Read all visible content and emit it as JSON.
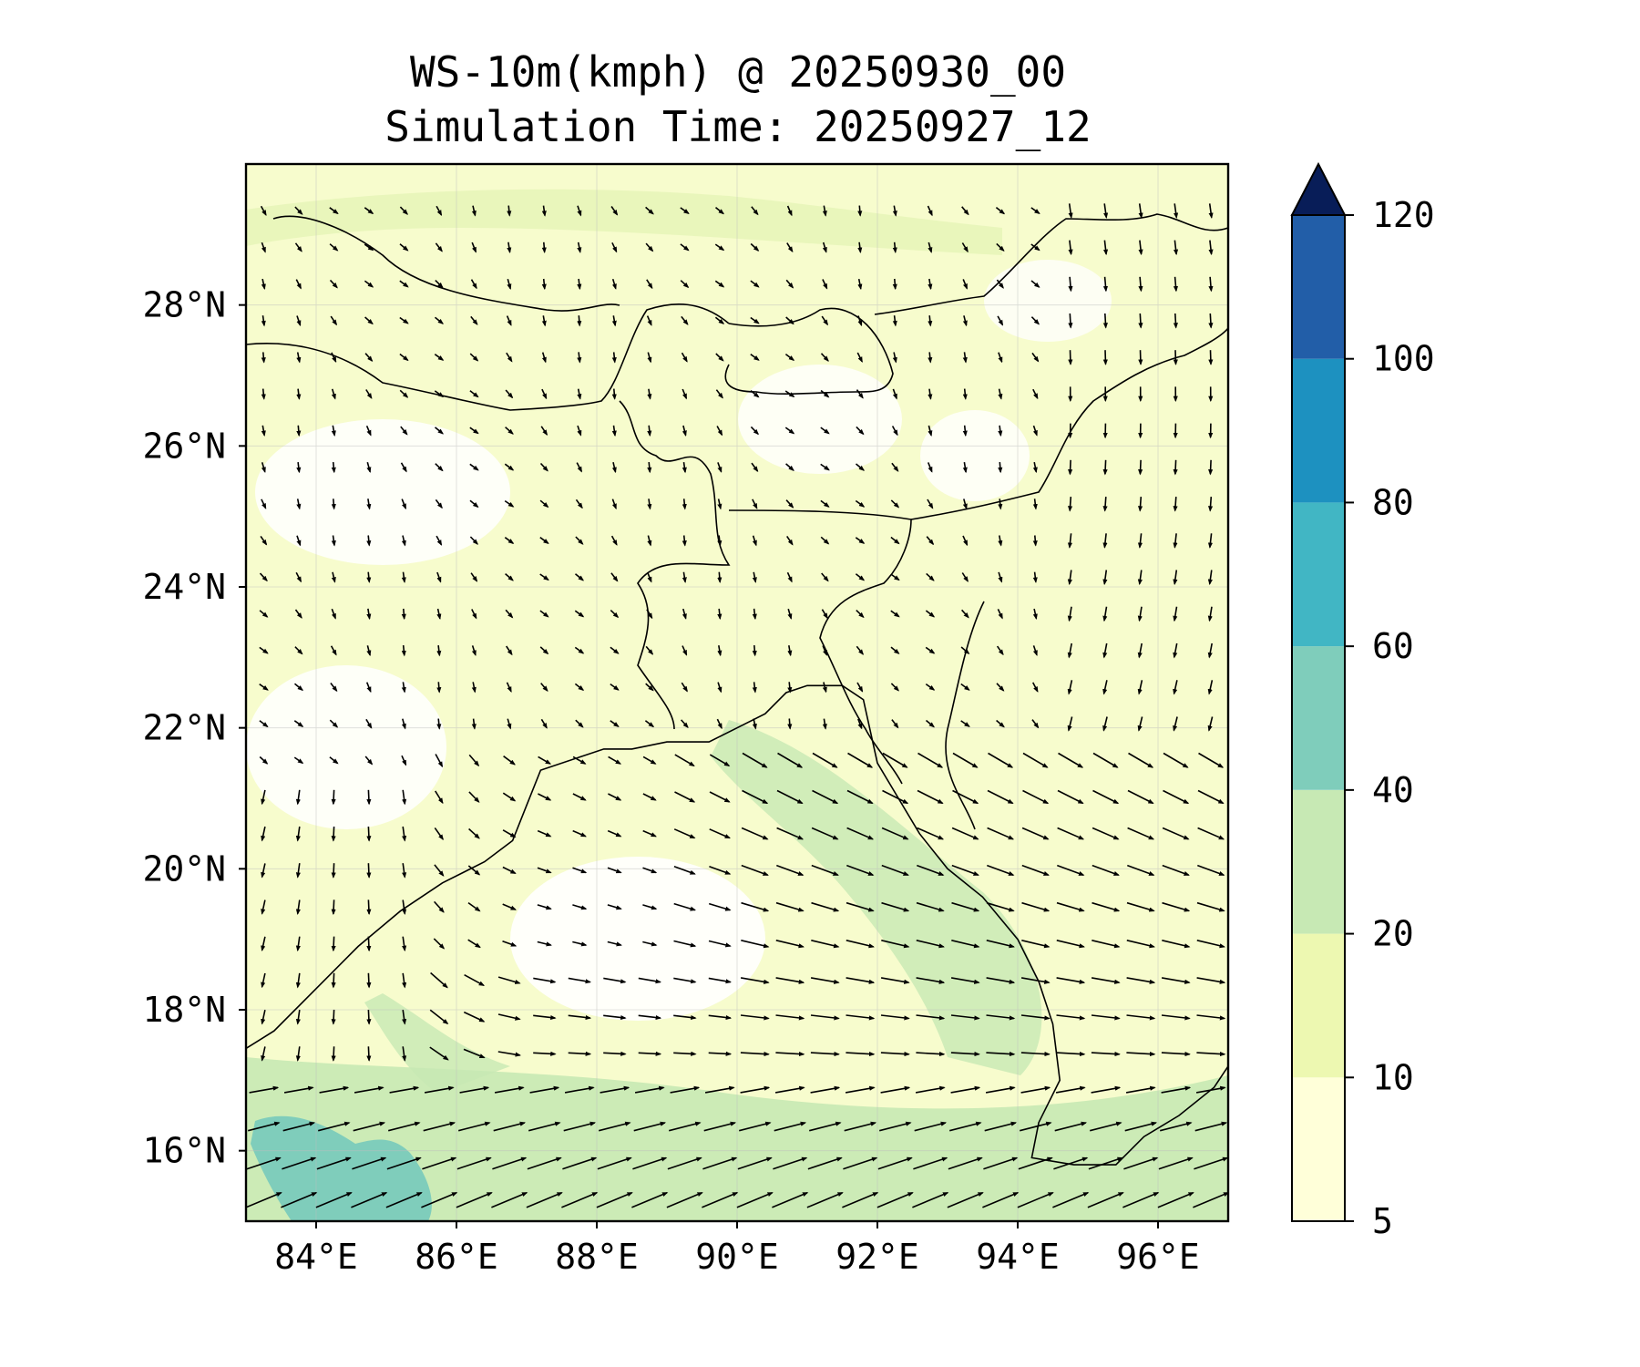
{
  "title": {
    "line1": "WS-10m(kmph) @ 20250930_00",
    "line2": "Simulation Time: 20250927_12"
  },
  "map": {
    "lon_range": [
      83.0,
      97.0
    ],
    "lat_range": [
      15.0,
      30.0
    ],
    "x_ticks": [
      {
        "value": 84,
        "label": "84°E"
      },
      {
        "value": 86,
        "label": "86°E"
      },
      {
        "value": 88,
        "label": "88°E"
      },
      {
        "value": 90,
        "label": "90°E"
      },
      {
        "value": 92,
        "label": "92°E"
      },
      {
        "value": 94,
        "label": "94°E"
      },
      {
        "value": 96,
        "label": "96°E"
      }
    ],
    "y_ticks": [
      {
        "value": 16,
        "label": "16°N"
      },
      {
        "value": 18,
        "label": "18°N"
      },
      {
        "value": 20,
        "label": "20°N"
      },
      {
        "value": 22,
        "label": "22°N"
      },
      {
        "value": 24,
        "label": "24°N"
      },
      {
        "value": 26,
        "label": "26°N"
      },
      {
        "value": 28,
        "label": "28°N"
      }
    ],
    "gridlines": true,
    "coastline": [
      [
        83.0,
        17.45
      ],
      [
        83.4,
        17.7
      ],
      [
        84.0,
        18.3
      ],
      [
        84.6,
        18.9
      ],
      [
        85.2,
        19.4
      ],
      [
        85.8,
        19.8
      ],
      [
        86.4,
        20.1
      ],
      [
        86.8,
        20.4
      ],
      [
        87.0,
        20.9
      ],
      [
        87.2,
        21.4
      ],
      [
        87.8,
        21.6
      ],
      [
        88.1,
        21.7
      ],
      [
        88.5,
        21.7
      ],
      [
        89.0,
        21.8
      ],
      [
        89.6,
        21.8
      ],
      [
        90.0,
        22.0
      ],
      [
        90.4,
        22.2
      ],
      [
        90.7,
        22.5
      ],
      [
        91.0,
        22.6
      ],
      [
        91.5,
        22.6
      ],
      [
        91.8,
        22.4
      ],
      [
        92.0,
        21.5
      ],
      [
        92.3,
        21.0
      ],
      [
        92.6,
        20.5
      ],
      [
        93.0,
        20.0
      ],
      [
        93.5,
        19.6
      ],
      [
        94.0,
        19.0
      ],
      [
        94.3,
        18.4
      ],
      [
        94.5,
        17.8
      ],
      [
        94.6,
        17.0
      ],
      [
        94.3,
        16.4
      ],
      [
        94.2,
        15.9
      ],
      [
        94.8,
        15.8
      ],
      [
        95.4,
        15.8
      ],
      [
        95.8,
        16.2
      ],
      [
        96.3,
        16.5
      ],
      [
        96.8,
        16.9
      ],
      [
        97.0,
        17.2
      ]
    ],
    "land_hatch_note": ""
  },
  "colorbar": {
    "levels": [
      5,
      10,
      20,
      40,
      60,
      80,
      100,
      120
    ],
    "tick_labels": [
      "5",
      "10",
      "20",
      "40",
      "60",
      "80",
      "100",
      "120"
    ],
    "colors": [
      "#ffffd9",
      "#edf8b1",
      "#c7e9b4",
      "#7fcdbb",
      "#41b6c4",
      "#1d91c0",
      "#225ea8",
      "#253494"
    ],
    "extend_color": "#081d58",
    "extend": "max"
  },
  "wind_field": {
    "unit": "kmph",
    "regimes": [
      {
        "region": "southwest Bay of Bengal",
        "speed": 45,
        "direction_deg": 70
      },
      {
        "region": "central/east Bay",
        "speed": 25,
        "direction_deg": 95
      },
      {
        "region": "northern Bay near coast",
        "speed": 22,
        "direction_deg": 120
      },
      {
        "region": "inland plains",
        "speed": 10,
        "direction_deg": 160
      }
    ]
  }
}
